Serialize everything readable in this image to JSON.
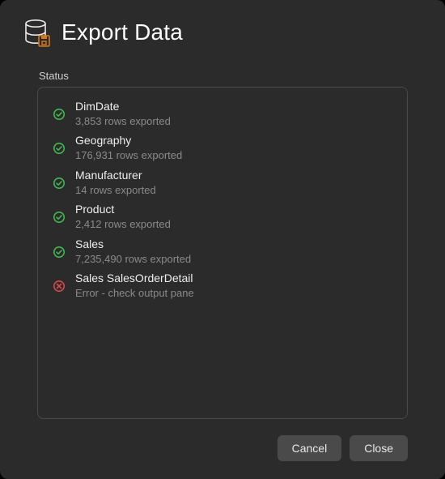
{
  "header": {
    "title": "Export Data",
    "icon_db_color": "#e8e8e8",
    "icon_save_color": "#d87a1a"
  },
  "section_label": "Status",
  "status_colors": {
    "success_stroke": "#3fb950",
    "error_stroke": "#d84a4a"
  },
  "items": [
    {
      "status": "success",
      "name": "DimDate",
      "detail": "3,853 rows exported"
    },
    {
      "status": "success",
      "name": "Geography",
      "detail": "176,931 rows exported"
    },
    {
      "status": "success",
      "name": "Manufacturer",
      "detail": "14 rows exported"
    },
    {
      "status": "success",
      "name": "Product",
      "detail": "2,412 rows exported"
    },
    {
      "status": "success",
      "name": "Sales",
      "detail": "7,235,490 rows exported"
    },
    {
      "status": "error",
      "name": "Sales SalesOrderDetail",
      "detail": "Error - check output pane"
    }
  ],
  "buttons": {
    "cancel": "Cancel",
    "close": "Close"
  },
  "panel": {
    "background": "#2b2b2b",
    "border_color": "#4a4a4a",
    "text_primary": "#eeeeee",
    "text_secondary": "#8a8a8a"
  }
}
